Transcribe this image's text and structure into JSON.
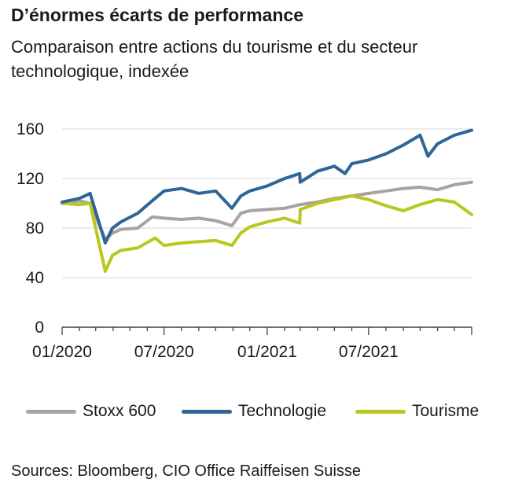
{
  "chart_data": {
    "type": "line",
    "title": "D’énormes écarts de performance",
    "subtitle": "Comparaison entre actions du tourisme et du secteur technologique, indexée",
    "x_tick_labels": [
      "01/2020",
      "07/2020",
      "01/2021",
      "07/2021"
    ],
    "ylim": [
      0,
      170
    ],
    "y_ticks": [
      0,
      40,
      80,
      120,
      160
    ],
    "grid": "horizontal",
    "legend_position": "bottom",
    "x_label": "",
    "y_label": "",
    "series": [
      {
        "name": "Stoxx 600",
        "color": "#aba1a3",
        "x": [
          "2020-01",
          "2020-02",
          "2020-02-20",
          "2020-03-18",
          "2020-03-31",
          "2020-04-15",
          "2020-05-15",
          "2020-06-10",
          "2020-07",
          "2020-08",
          "2020-09",
          "2020-10",
          "2020-10-30",
          "2020-11-15",
          "2020-12",
          "2021-01",
          "2021-02",
          "2021-03",
          "2021-04",
          "2021-05",
          "2021-06",
          "2021-07",
          "2021-08",
          "2021-09",
          "2021-10",
          "2021-11",
          "2021-12",
          "2022-01"
        ],
        "values": [
          100,
          102,
          100,
          71,
          76,
          79,
          80,
          89,
          88,
          87,
          88,
          86,
          82,
          92,
          94,
          95,
          96,
          99,
          101,
          104,
          106,
          108,
          110,
          112,
          113,
          111,
          115,
          117
        ]
      },
      {
        "name": "Technologie",
        "color": "#2f6699",
        "x": [
          "2020-01",
          "2020-02",
          "2020-02-20",
          "2020-03-18",
          "2020-03-31",
          "2020-04-15",
          "2020-05-15",
          "2020-06-15",
          "2020-07",
          "2020-08",
          "2020-09",
          "2020-10",
          "2020-10-30",
          "2020-11-15",
          "2020-12",
          "2021-01",
          "2021-02",
          "2021-02-28",
          "2021-03",
          "2021-04",
          "2021-05",
          "2021-05-20",
          "2021-06",
          "2021-07",
          "2021-08",
          "2021-09",
          "2021-10",
          "2021-10-15",
          "2021-11",
          "2021-12",
          "2022-01"
        ],
        "values": [
          101,
          104,
          108,
          68,
          80,
          85,
          92,
          104,
          110,
          112,
          108,
          110,
          96,
          106,
          110,
          114,
          120,
          124,
          117,
          126,
          130,
          124,
          132,
          135,
          140,
          147,
          155,
          138,
          148,
          155,
          159
        ]
      },
      {
        "name": "Tourisme",
        "color": "#b8c81e",
        "x": [
          "2020-01",
          "2020-02",
          "2020-02-20",
          "2020-03-18",
          "2020-03-31",
          "2020-04-15",
          "2020-05-15",
          "2020-06-15",
          "2020-07",
          "2020-08",
          "2020-09",
          "2020-10",
          "2020-10-30",
          "2020-11-15",
          "2020-12",
          "2021-01",
          "2021-02",
          "2021-02-28",
          "2021-03",
          "2021-04",
          "2021-05",
          "2021-06",
          "2021-07",
          "2021-08",
          "2021-09",
          "2021-10",
          "2021-11",
          "2021-12",
          "2022-01"
        ],
        "values": [
          100,
          99,
          100,
          45,
          58,
          62,
          64,
          72,
          66,
          68,
          69,
          70,
          66,
          76,
          81,
          85,
          88,
          84,
          95,
          100,
          103,
          106,
          103,
          98,
          94,
          99,
          103,
          101,
          91
        ]
      }
    ]
  },
  "source": "Sources: Bloomberg, CIO Office Raiffeisen Suisse"
}
